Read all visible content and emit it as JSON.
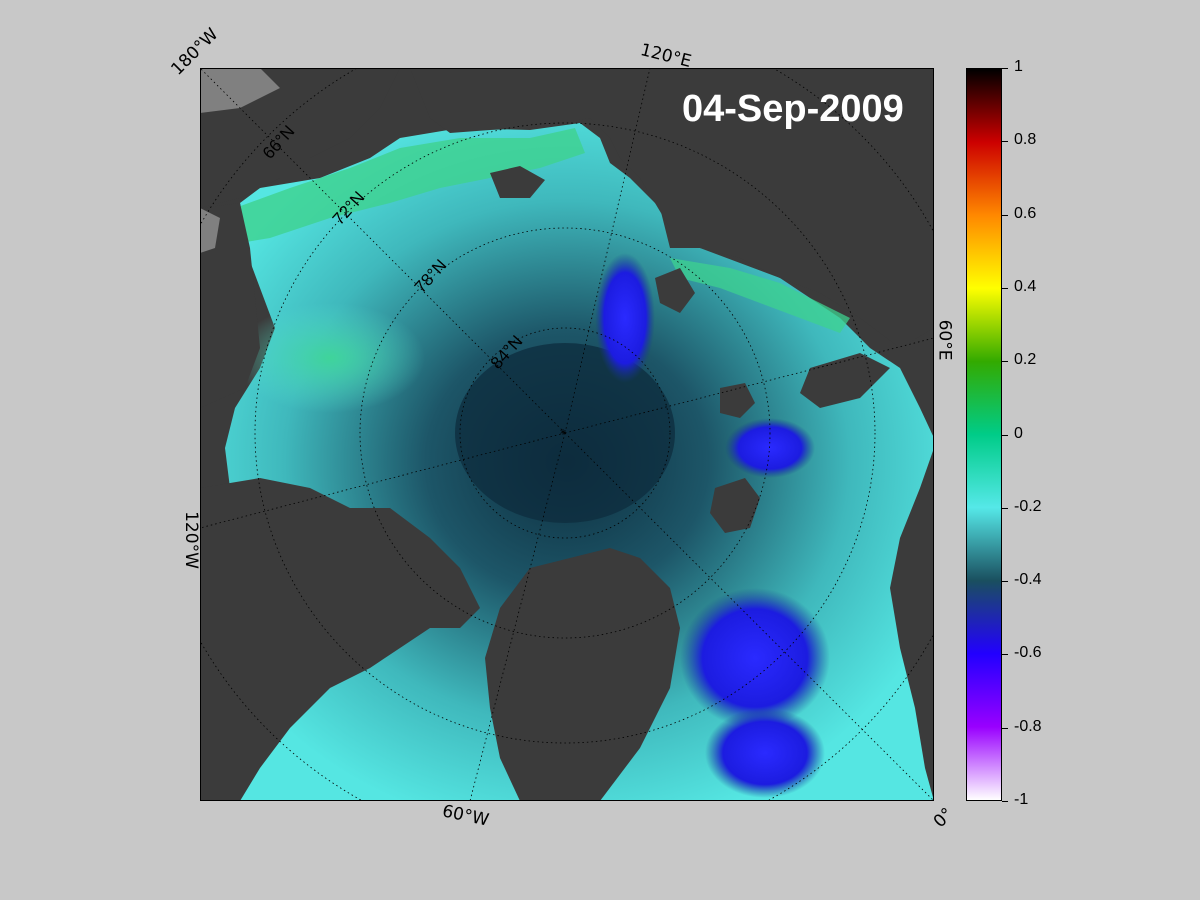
{
  "title": "04-Sep-2009",
  "map": {
    "corner_labels": {
      "top_left": "180°W",
      "top_center": "120°E",
      "right_mid": "60°E",
      "bottom_right": "0°",
      "bottom_center": "60°W",
      "left_mid": "120°W"
    },
    "lat_labels": [
      "66°N",
      "72°N",
      "78°N",
      "84°N"
    ],
    "projection": "north-polar stereographic",
    "land_color": "#3b3b3b",
    "masked_color": "#808080"
  },
  "colorbar": {
    "min": -1,
    "max": 1,
    "tick_labels": [
      "1",
      "0.8",
      "0.6",
      "0.4",
      "0.2",
      "0",
      "-0.2",
      "-0.4",
      "-0.6",
      "-0.8",
      "-1"
    ],
    "colormap": [
      "#000000",
      "#cc0000",
      "#ff8800",
      "#ffff00",
      "#33aa00",
      "#00cc88",
      "#55e8e8",
      "#1a4f5f",
      "#2200ff",
      "#9900ff",
      "#ffffff"
    ]
  }
}
